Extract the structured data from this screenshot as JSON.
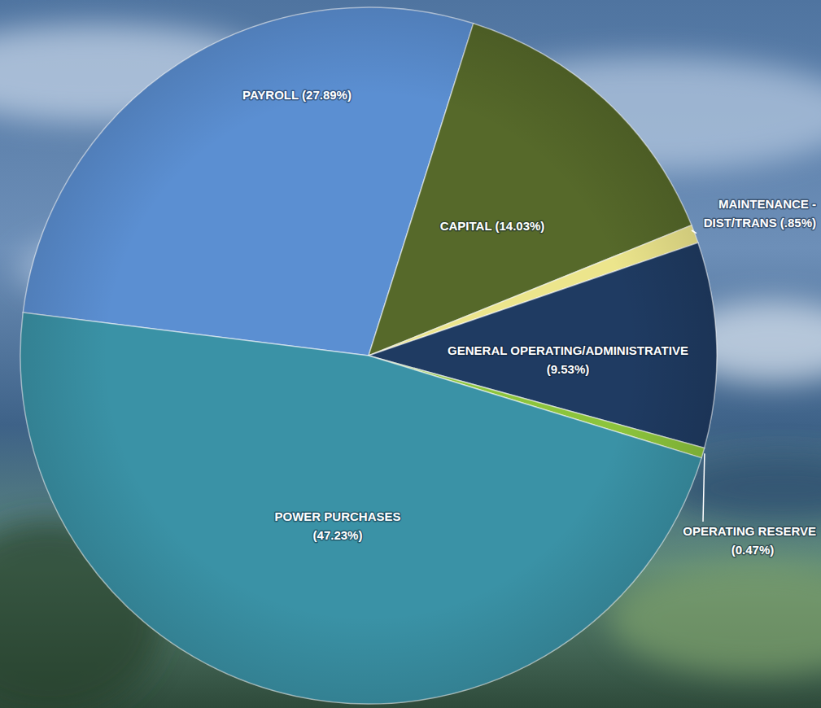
{
  "chart_data": {
    "type": "pie",
    "categories": [
      "PAYROLL",
      "CAPITAL",
      "MAINTENANCE - DIST/TRANS",
      "GENERAL OPERATING/ADMINISTRATIVE",
      "OPERATING RESERVE",
      "POWER PURCHASES"
    ],
    "values": [
      27.89,
      14.03,
      0.85,
      9.53,
      0.47,
      47.23
    ],
    "value_labels": [
      "(27.89%)",
      "(14.03%)",
      "(.85%)",
      "(9.53%)",
      "(0.47%)",
      "(47.23%)"
    ],
    "colors": [
      "#5b8fd2",
      "#56692a",
      "#ece58c",
      "#1f3b62",
      "#8cc43c",
      "#3a92a6"
    ],
    "data_labels": true
  }
}
